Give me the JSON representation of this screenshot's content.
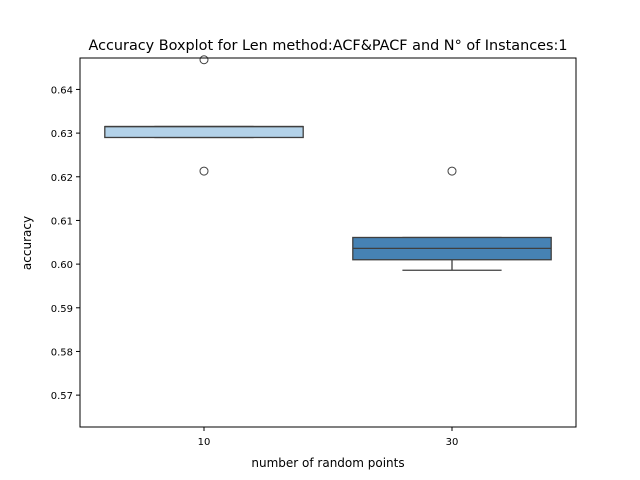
{
  "chart_data": {
    "type": "boxplot",
    "title": "Accuracy Boxplot for Len method:ACF&PACF and N° of Instances:1",
    "xlabel": "number of random points",
    "ylabel": "accuracy",
    "ylim": [
      0.5627,
      0.6472
    ],
    "yticks": [
      0.57,
      0.58,
      0.59,
      0.6,
      0.61,
      0.62,
      0.63,
      0.64
    ],
    "ytick_labels": [
      "0.57",
      "0.58",
      "0.59",
      "0.60",
      "0.61",
      "0.62",
      "0.63",
      "0.64"
    ],
    "categories": [
      "10",
      "30"
    ],
    "grid": false,
    "boxes": [
      {
        "category": "10",
        "whisker_low": 0.629,
        "q1": 0.629,
        "median": 0.6315,
        "q3": 0.6315,
        "whisker_high": 0.6315,
        "fliers": [
          0.6213,
          0.6468
        ],
        "color": "#b3d2e9"
      },
      {
        "category": "30",
        "whisker_low": 0.5986,
        "q1": 0.601,
        "median": 0.6036,
        "q3": 0.6061,
        "whisker_high": 0.6061,
        "fliers": [
          0.6213
        ],
        "color": "#4682b4"
      }
    ]
  }
}
